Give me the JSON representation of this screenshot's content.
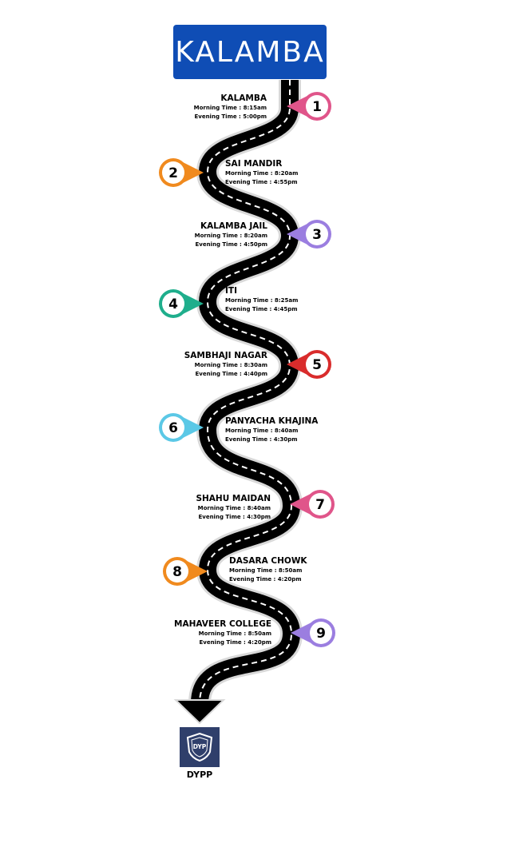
{
  "header": {
    "title": "KALAMBA"
  },
  "stops": [
    {
      "number": "1",
      "name": "KALAMBA",
      "morning": "Morning Time : 8:15am",
      "evening": "Evening Time : 5:00pm",
      "color": "#e0558a"
    },
    {
      "number": "2",
      "name": "SAI MANDIR",
      "morning": "Morning Time : 8:20am",
      "evening": "Evening Time : 4:55pm",
      "color": "#f08a1e"
    },
    {
      "number": "3",
      "name": "KALAMBA JAIL",
      "morning": "Morning Time : 8:20am",
      "evening": "Evening Time : 4:50pm",
      "color": "#9b7ee0"
    },
    {
      "number": "4",
      "name": "ITI",
      "morning": "Morning Time : 8:25am",
      "evening": "Evening Time : 4:45pm",
      "color": "#1fae8c"
    },
    {
      "number": "5",
      "name": "SAMBHAJI NAGAR",
      "morning": "Morning Time : 8:30am",
      "evening": "Evening Time : 4:40pm",
      "color": "#d92c2c"
    },
    {
      "number": "6",
      "name": "PANYACHA KHAJINA",
      "morning": "Morning Time : 8:40am",
      "evening": "Evening Time : 4:30pm",
      "color": "#5bc8e6"
    },
    {
      "number": "7",
      "name": "SHAHU MAIDAN",
      "morning": "Morning Time : 8:40am",
      "evening": "Evening Time : 4:30pm",
      "color": "#e0558a"
    },
    {
      "number": "8",
      "name": "DASARA CHOWK",
      "morning": "Morning Time : 8:50am",
      "evening": "Evening Time : 4:20pm",
      "color": "#f08a1e"
    },
    {
      "number": "9",
      "name": "MAHAVEER COLLEGE",
      "morning": "Morning Time : 8:50am",
      "evening": "Evening Time : 4:20pm",
      "color": "#9b7ee0"
    }
  ],
  "destination": {
    "name": "DYPP",
    "logo_text": "DYP",
    "logo_color": "#2f3f6b"
  }
}
